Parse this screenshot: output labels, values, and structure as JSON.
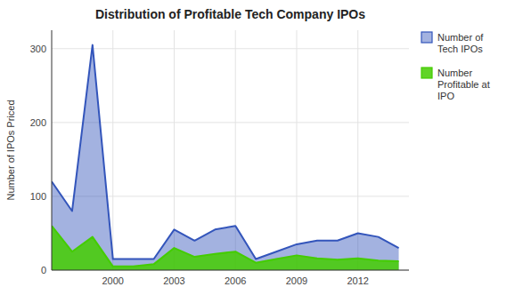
{
  "chart_data": {
    "type": "area",
    "title": "Distribution of Profitable Tech Company IPOs",
    "y_label": "Number of IPOs Priced",
    "x": [
      1997,
      1998,
      1999,
      2000,
      2001,
      2002,
      2003,
      2004,
      2005,
      2006,
      2007,
      2008,
      2009,
      2010,
      2011,
      2012,
      2013,
      2014
    ],
    "series": [
      {
        "name": "Number of\nTech IPOs",
        "color": "#3355bb",
        "values": [
          120,
          80,
          305,
          15,
          15,
          15,
          55,
          40,
          55,
          60,
          15,
          25,
          35,
          40,
          40,
          50,
          45,
          30
        ]
      },
      {
        "name": "Number\nProfitable at\nIPO",
        "color": "#44cc00",
        "values": [
          60,
          25,
          45,
          5,
          5,
          8,
          30,
          18,
          22,
          25,
          10,
          15,
          20,
          16,
          14,
          16,
          13,
          12
        ]
      }
    ],
    "xlim": [
      1997,
      2014.5
    ],
    "xticks": [
      2000,
      2003,
      2006,
      2009,
      2012
    ],
    "ylim": [
      0,
      325
    ],
    "yticks": [
      0,
      100,
      200,
      300
    ],
    "grid": true,
    "legend": "right"
  }
}
